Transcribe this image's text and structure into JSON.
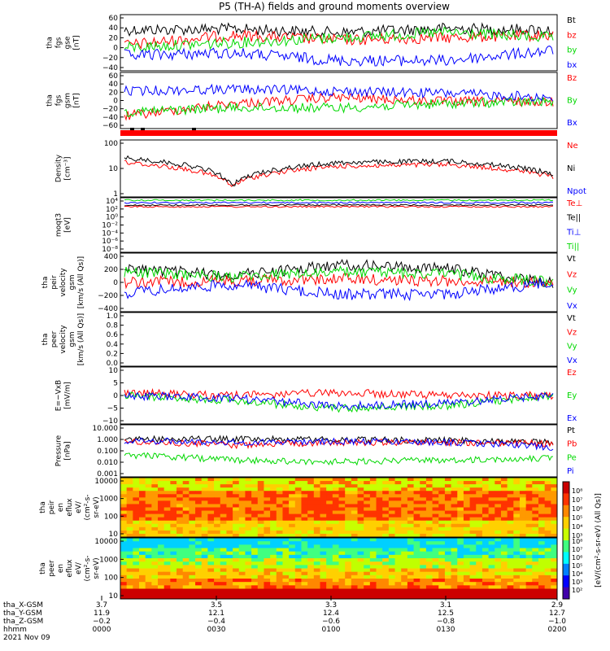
{
  "title": "P5 (TH-A) fields and ground moments overview",
  "colors": {
    "black": "#000000",
    "red": "#ff0000",
    "green": "#00d800",
    "blue": "#0000ff",
    "bar": "#ff0000"
  },
  "panels": [
    {
      "id": "fgs-gse",
      "ylabel": [
        "tha",
        "fgs",
        "gse",
        "[nT]"
      ],
      "yticks": [
        "60",
        "40",
        "20",
        "0",
        "−20",
        "−40"
      ],
      "legend": [
        {
          "text": "Bt",
          "color": "#000000"
        },
        {
          "text": "bz",
          "color": "#ff0000"
        },
        {
          "text": "by",
          "color": "#00d800"
        },
        {
          "text": "bx",
          "color": "#0000ff"
        }
      ]
    },
    {
      "id": "fgs-gsm",
      "ylabel": [
        "tha",
        "fgs",
        "gsm",
        "[nT]"
      ],
      "yticks": [
        "60",
        "40",
        "20",
        "0",
        "−20",
        "−40",
        "−60"
      ],
      "legend": [
        {
          "text": "Bz",
          "color": "#ff0000"
        },
        {
          "text": "By",
          "color": "#00d800"
        },
        {
          "text": "Bx",
          "color": "#0000ff"
        }
      ]
    },
    {
      "id": "density",
      "ylabel": [
        "Density",
        "[cm⁻³]"
      ],
      "yticks": [
        "100",
        "10",
        "1"
      ],
      "legend": [
        {
          "text": "Ne",
          "color": "#ff0000"
        },
        {
          "text": "Ni",
          "color": "#000000"
        },
        {
          "text": "Npot",
          "color": "#0000ff"
        }
      ]
    },
    {
      "id": "temperature",
      "ylabel": [
        "moqt3",
        "[eV]"
      ],
      "yticks": [
        "10⁴",
        "10²",
        "10⁰",
        "10⁻²",
        "10⁻⁴",
        "10⁻⁶",
        "10⁻⁸"
      ],
      "legend": [
        {
          "text": "Te⊥",
          "color": "#ff0000"
        },
        {
          "text": "Te||",
          "color": "#000000"
        },
        {
          "text": "Ti⊥",
          "color": "#0000ff"
        },
        {
          "text": "Ti||",
          "color": "#00d800"
        }
      ]
    },
    {
      "id": "peir-velocity",
      "ylabel": [
        "tha",
        "peir",
        "velocity",
        "gsm",
        "[km/s (All Qs)]"
      ],
      "yticks": [
        "400",
        "200",
        "0",
        "−200",
        "−400"
      ],
      "legend": [
        {
          "text": "Vt",
          "color": "#000000"
        },
        {
          "text": "Vz",
          "color": "#ff0000"
        },
        {
          "text": "Vy",
          "color": "#00d800"
        },
        {
          "text": "Vx",
          "color": "#0000ff"
        }
      ]
    },
    {
      "id": "peer-velocity",
      "ylabel": [
        "tha",
        "peer",
        "velocity",
        "gsm",
        "[km/s (All Qs)]"
      ],
      "yticks": [
        "1.0",
        "0.8",
        "0.6",
        "0.4",
        "0.2",
        "0.0"
      ],
      "legend": [
        {
          "text": "Vt",
          "color": "#000000"
        },
        {
          "text": "Vz",
          "color": "#ff0000"
        },
        {
          "text": "Vy",
          "color": "#00d800"
        },
        {
          "text": "Vx",
          "color": "#0000ff"
        }
      ]
    },
    {
      "id": "efield",
      "ylabel": [
        "E=−VxB",
        "[mV/m]"
      ],
      "yticks": [
        "10",
        "5",
        "0",
        "−5",
        "−10"
      ],
      "legend": [
        {
          "text": "Ez",
          "color": "#ff0000"
        },
        {
          "text": "Ey",
          "color": "#00d800"
        },
        {
          "text": "Ex",
          "color": "#0000ff"
        }
      ]
    },
    {
      "id": "pressure",
      "ylabel": [
        "Pressure",
        "[nPa]"
      ],
      "yticks": [
        "10.000",
        "1.000",
        "0.100",
        "0.010",
        "0.001"
      ],
      "legend": [
        {
          "text": "Pt",
          "color": "#000000"
        },
        {
          "text": "Pb",
          "color": "#ff0000"
        },
        {
          "text": "Pe",
          "color": "#00d800"
        },
        {
          "text": "Pi",
          "color": "#0000ff"
        }
      ]
    },
    {
      "id": "peir-eflux",
      "ylabel": [
        "tha",
        "peir",
        "en",
        "eflux",
        "eV/",
        "(cm²-s-",
        "sr-eV)"
      ],
      "yticks": [
        "10000",
        "1000",
        "100",
        "10"
      ],
      "legend": []
    },
    {
      "id": "peer-eflux",
      "ylabel": [
        "tha",
        "peer",
        "en",
        "eflux",
        "eV/",
        "(cm²-s-",
        "sr-eV)"
      ],
      "yticks": [
        "10000",
        "1000",
        "100",
        "10"
      ],
      "legend": []
    }
  ],
  "colorbar": {
    "label": "[eV/(cm²-s-sr-eV) (All Qs)]",
    "upper_ticks": [
      "10⁸",
      "10⁷",
      "10⁶",
      "10⁵",
      "10⁴",
      "10³"
    ],
    "lower_ticks": [
      "10⁸",
      "10⁷",
      "10⁶",
      "10⁵",
      "10⁴",
      "10³",
      "10²"
    ]
  },
  "xaxis": {
    "row_labels": [
      "tha_X-GSM",
      "tha_Y-GSM",
      "tha_Z-GSM",
      "hhmm",
      "2021 Nov 09"
    ],
    "columns": [
      {
        "values": [
          "3.7",
          "11.9",
          "−0.2",
          "0000"
        ]
      },
      {
        "values": [
          "3.5",
          "12.1",
          "−0.4",
          "0030"
        ]
      },
      {
        "values": [
          "3.3",
          "12.4",
          "−0.6",
          "0100"
        ]
      },
      {
        "values": [
          "3.1",
          "12.5",
          "−0.8",
          "0130"
        ]
      },
      {
        "values": [
          "2.9",
          "12.7",
          "−1.0",
          "0200"
        ]
      }
    ]
  },
  "chart_data": {
    "type": "line",
    "title": "P5 (TH-A) fields and ground moments overview",
    "x": [
      "0000",
      "0030",
      "0100",
      "0130",
      "0200"
    ],
    "series_approx": [
      {
        "panel": "fgs-gse",
        "name": "Bt",
        "values": [
          35,
          37,
          30,
          38,
          35
        ]
      },
      {
        "panel": "fgs-gse",
        "name": "bz",
        "values": [
          5,
          25,
          15,
          20,
          25
        ]
      },
      {
        "panel": "fgs-gse",
        "name": "by",
        "values": [
          0,
          10,
          20,
          30,
          20
        ]
      },
      {
        "panel": "fgs-gse",
        "name": "bx",
        "values": [
          -15,
          -10,
          -25,
          -25,
          -5
        ]
      },
      {
        "panel": "fgs-gsm",
        "name": "Bz",
        "values": [
          -40,
          -10,
          5,
          -5,
          -5
        ]
      },
      {
        "panel": "fgs-gsm",
        "name": "By",
        "values": [
          -30,
          -20,
          -20,
          -10,
          -5
        ]
      },
      {
        "panel": "fgs-gsm",
        "name": "Bx",
        "values": [
          20,
          25,
          20,
          15,
          5
        ]
      },
      {
        "panel": "density",
        "name": "Ne",
        "values": [
          15,
          1,
          10,
          12,
          3
        ]
      },
      {
        "panel": "density",
        "name": "Ni",
        "values": [
          25,
          1,
          15,
          18,
          4
        ]
      },
      {
        "panel": "peir-velocity",
        "name": "Vt",
        "values": [
          200,
          100,
          250,
          200,
          0
        ]
      },
      {
        "panel": "peir-velocity",
        "name": "Vz",
        "values": [
          0,
          20,
          50,
          20,
          0
        ]
      },
      {
        "panel": "peir-velocity",
        "name": "Vy",
        "values": [
          150,
          80,
          150,
          120,
          0
        ]
      },
      {
        "panel": "peir-velocity",
        "name": "Vx",
        "values": [
          -150,
          -30,
          -170,
          -170,
          0
        ]
      },
      {
        "panel": "efield",
        "name": "Ez",
        "values": [
          1,
          0,
          1,
          0,
          0
        ]
      },
      {
        "panel": "efield",
        "name": "Ey",
        "values": [
          0,
          -2,
          -5,
          -4,
          0
        ]
      },
      {
        "panel": "efield",
        "name": "Ex",
        "values": [
          0,
          -1,
          -4,
          -3,
          0
        ]
      },
      {
        "panel": "pressure",
        "name": "Pt",
        "values": [
          0.9,
          0.9,
          0.8,
          0.7,
          0.5
        ]
      },
      {
        "panel": "pressure",
        "name": "Pb",
        "values": [
          0.6,
          0.3,
          0.5,
          0.5,
          0.4
        ]
      },
      {
        "panel": "pressure",
        "name": "Pe",
        "values": [
          0.05,
          0.02,
          0.015,
          0.02,
          0.03
        ]
      },
      {
        "panel": "pressure",
        "name": "Pi",
        "values": [
          0.7,
          0.5,
          0.6,
          0.5,
          0.2
        ]
      }
    ]
  }
}
